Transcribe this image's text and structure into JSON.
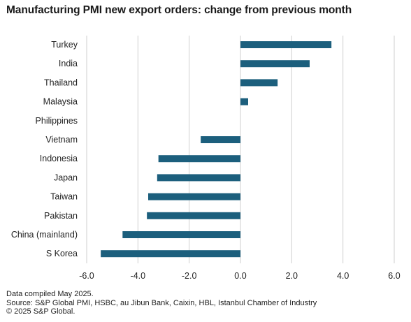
{
  "title": "Manufacturing PMI new export orders: change from previous month",
  "footer": {
    "line1": "Data compiled May  2025.",
    "line2": "Source: S&P Global PMI, HSBC, au Jibun Bank, Caixin, HBL, Istanbul Chamber of Industry",
    "line3": "© 2025 S&P Global."
  },
  "chart_data": {
    "type": "bar",
    "orientation": "horizontal",
    "categories": [
      "Turkey",
      "India",
      "Thailand",
      "Malaysia",
      "Philippines",
      "Vietnam",
      "Indonesia",
      "Japan",
      "Taiwan",
      "Pakistan",
      "China (mainland)",
      "S Korea"
    ],
    "values": [
      3.55,
      2.7,
      1.45,
      0.3,
      0.0,
      -1.55,
      -3.2,
      -3.25,
      -3.6,
      -3.65,
      -4.6,
      -5.45
    ],
    "xlim": [
      -6.0,
      6.0
    ],
    "xticks": [
      "-6.0",
      "-4.0",
      "-2.0",
      "0.0",
      "2.0",
      "4.0",
      "6.0"
    ],
    "xtick_values": [
      -6,
      -4,
      -2,
      0,
      2,
      4,
      6
    ],
    "grid": "vertical",
    "bar_color": "#1c5f7d",
    "grid_color": "#cfcfcf"
  }
}
